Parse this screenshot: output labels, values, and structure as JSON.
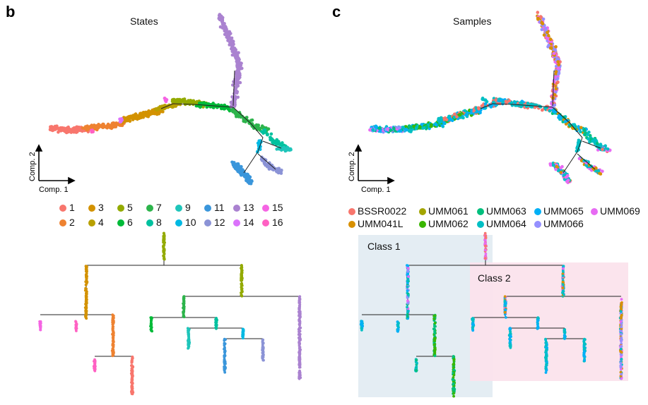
{
  "panels": {
    "b": {
      "letter": "b",
      "title": "States"
    },
    "c": {
      "letter": "c",
      "title": "Samples"
    }
  },
  "axes_labels": {
    "comp1": "Comp. 1",
    "comp2": "Comp. 2"
  },
  "classes": {
    "class1": "Class 1",
    "class2": "Class 2"
  },
  "colors": {
    "states": {
      "1": "#F8766D",
      "2": "#EE8231",
      "3": "#D39200",
      "4": "#B8A000",
      "5": "#93AA00",
      "6": "#00BA38",
      "7": "#2DB44B",
      "8": "#00C19F",
      "9": "#1FC5BA",
      "10": "#00B9E3",
      "11": "#3A96DB",
      "12": "#8B93D6",
      "13": "#AA82D0",
      "14": "#DB72FB",
      "15": "#F564E3",
      "16": "#FF61C3"
    },
    "samples": {
      "BSSR0022": "#F8766D",
      "UMM041L": "#D89000",
      "UMM061": "#A3A500",
      "UMM062": "#39B600",
      "UMM063": "#00BF7D",
      "UMM064": "#00BFC4",
      "UMM065": "#00B0F6",
      "UMM066": "#9590FF",
      "UMM069": "#E76BF3"
    },
    "class1_bg": "#E4EDF3",
    "class2_bg": "#FBE3EC"
  },
  "chart_data": [
    {
      "type": "scatter",
      "panel": "b",
      "title": "States",
      "xlabel": "Comp. 1",
      "ylabel": "Comp. 2",
      "legend": {
        "placement": "bottom",
        "entries": [
          "1",
          "2",
          "3",
          "4",
          "5",
          "6",
          "7",
          "8",
          "9",
          "10",
          "11",
          "12",
          "13",
          "14",
          "15",
          "16"
        ]
      },
      "description_branches": [
        "left arm (states 1-6)",
        "upper arm (state 13)",
        "lower branches (states 7-12)"
      ]
    },
    {
      "type": "scatter",
      "panel": "c",
      "title": "Samples",
      "xlabel": "Comp. 1",
      "ylabel": "Comp. 2",
      "legend": {
        "placement": "bottom",
        "entries": [
          "BSSR0022",
          "UMM061",
          "UMM063",
          "UMM065",
          "UMM069",
          "UMM041L",
          "UMM062",
          "UMM064",
          "UMM066"
        ]
      }
    }
  ]
}
